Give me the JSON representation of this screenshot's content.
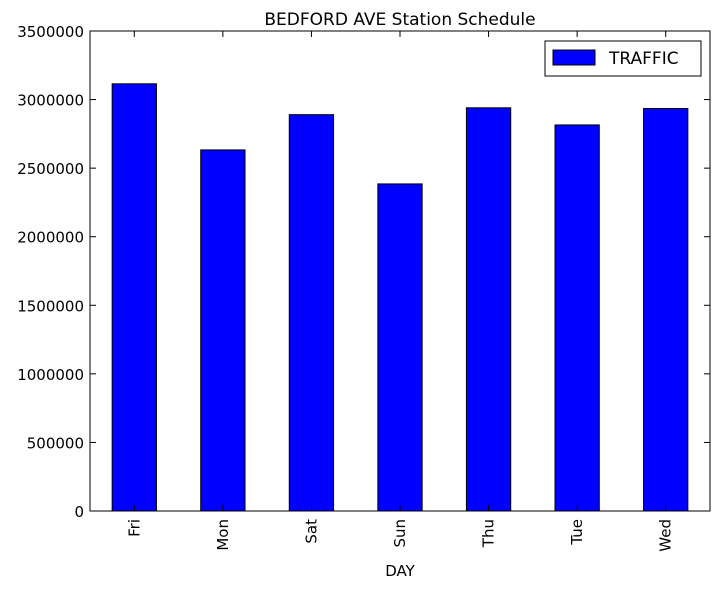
{
  "chart_data": {
    "type": "bar",
    "title": "BEDFORD AVE Station Schedule",
    "xlabel": "DAY",
    "ylabel": "",
    "categories": [
      "Fri",
      "Mon",
      "Sat",
      "Sun",
      "Thu",
      "Tue",
      "Wed"
    ],
    "series": [
      {
        "name": "TRAFFIC",
        "color": "#0000ff",
        "values": [
          3115000,
          2633000,
          2890000,
          2385000,
          2940000,
          2815000,
          2935000
        ]
      }
    ],
    "ylim": [
      0,
      3500000
    ],
    "yticks": [
      "0",
      "500000",
      "1000000",
      "1500000",
      "2000000",
      "2500000",
      "3000000",
      "3500000"
    ],
    "grid": false,
    "legend_position": "top-right"
  }
}
